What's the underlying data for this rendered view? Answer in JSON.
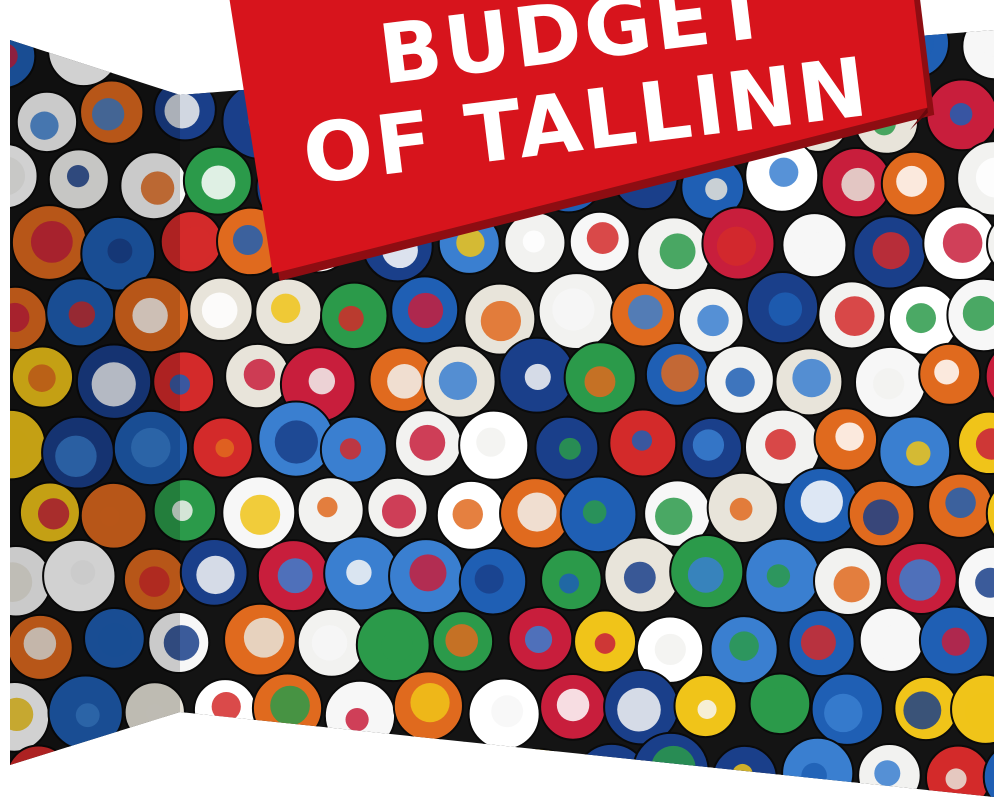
{
  "banner": {
    "lines": [
      "BUDGET",
      "OF TALLINN"
    ]
  }
}
